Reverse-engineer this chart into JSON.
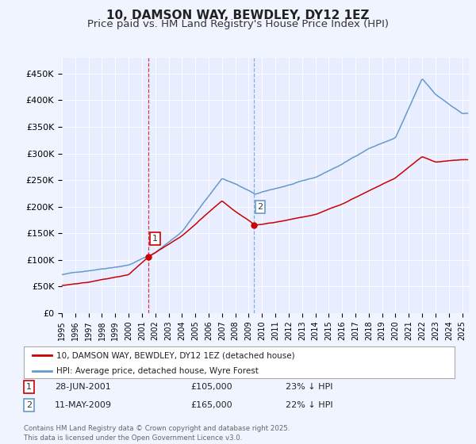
{
  "title": "10, DAMSON WAY, BEWDLEY, DY12 1EZ",
  "subtitle": "Price paid vs. HM Land Registry's House Price Index (HPI)",
  "xlabel": "",
  "ylabel": "",
  "ylim": [
    0,
    480000
  ],
  "yticks": [
    0,
    50000,
    100000,
    150000,
    200000,
    250000,
    300000,
    350000,
    400000,
    450000
  ],
  "ytick_labels": [
    "£0",
    "£50K",
    "£100K",
    "£150K",
    "£200K",
    "£250K",
    "£300K",
    "£350K",
    "£400K",
    "£450K"
  ],
  "background_color": "#f0f4ff",
  "plot_bg_color": "#e8eeff",
  "red_line_color": "#cc0000",
  "blue_line_color": "#6699cc",
  "purchase1_x": 2001.49,
  "purchase1_y": 105000,
  "purchase1_label": "1",
  "purchase1_date": "28-JUN-2001",
  "purchase1_price": "£105,000",
  "purchase1_hpi": "23% ↓ HPI",
  "purchase2_x": 2009.36,
  "purchase2_y": 165000,
  "purchase2_label": "2",
  "purchase2_date": "11-MAY-2009",
  "purchase2_price": "£165,000",
  "purchase2_hpi": "22% ↓ HPI",
  "legend_label_red": "10, DAMSON WAY, BEWDLEY, DY12 1EZ (detached house)",
  "legend_label_blue": "HPI: Average price, detached house, Wyre Forest",
  "footer": "Contains HM Land Registry data © Crown copyright and database right 2025.\nThis data is licensed under the Open Government Licence v3.0.",
  "xmin": 1995.0,
  "xmax": 2025.5,
  "title_fontsize": 11,
  "subtitle_fontsize": 9.5,
  "blue_anchors_t": [
    1995,
    1997,
    2000,
    2002,
    2004,
    2007,
    2008,
    2009.5,
    2011,
    2014,
    2016,
    2018,
    2020,
    2022,
    2023,
    2025
  ],
  "blue_anchors_v": [
    72000,
    80000,
    92000,
    115000,
    155000,
    255000,
    245000,
    225000,
    235000,
    255000,
    280000,
    310000,
    330000,
    440000,
    410000,
    375000
  ],
  "red_anchors_t": [
    1995,
    1997,
    2000,
    2001.49,
    2004,
    2007,
    2008,
    2009.5,
    2011,
    2014,
    2016,
    2018,
    2020,
    2022,
    2023,
    2025
  ],
  "red_anchors_v": [
    52000,
    58000,
    72000,
    105000,
    145000,
    210000,
    190000,
    165000,
    170000,
    185000,
    205000,
    230000,
    255000,
    295000,
    285000,
    290000
  ]
}
